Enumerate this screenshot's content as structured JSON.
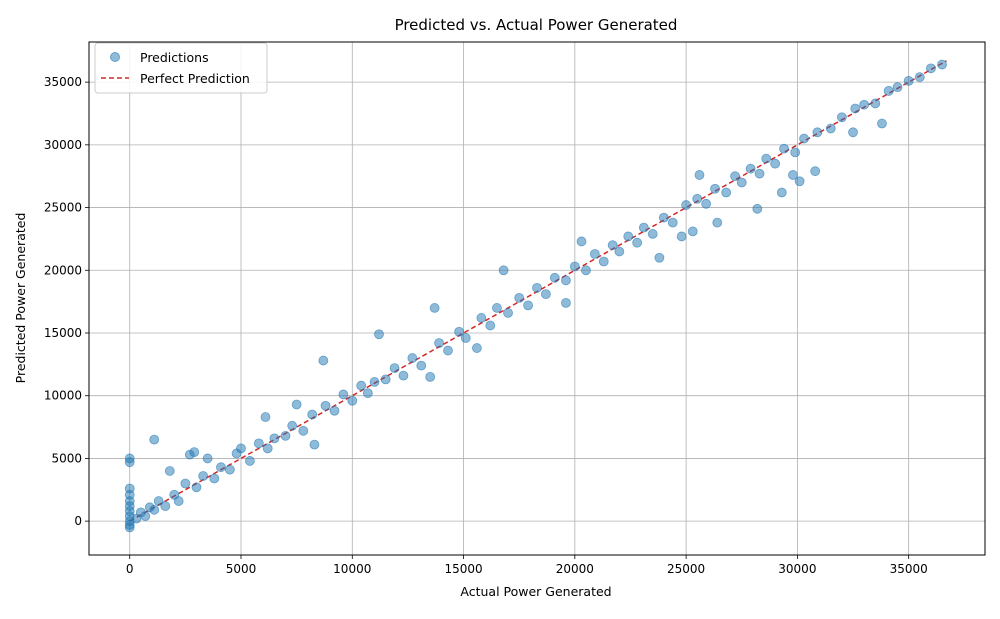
{
  "chart_data": {
    "type": "scatter",
    "title": "Predicted vs. Actual Power Generated",
    "xlabel": "Actual Power Generated",
    "ylabel": "Predicted Power Generated",
    "xlim": [
      -1830,
      38430
    ],
    "ylim": [
      -2700,
      38200
    ],
    "x_ticks": [
      0,
      5000,
      10000,
      15000,
      20000,
      25000,
      30000,
      35000
    ],
    "y_ticks": [
      0,
      5000,
      10000,
      15000,
      20000,
      25000,
      30000,
      35000
    ],
    "grid": true,
    "legend_position": "top-left",
    "colors": {
      "points": "#1f77b4",
      "reference_line": "#d62728"
    },
    "series": [
      {
        "name": "Predictions",
        "kind": "scatter",
        "points": [
          [
            0,
            0
          ],
          [
            0,
            400
          ],
          [
            0,
            800
          ],
          [
            0,
            1200
          ],
          [
            0,
            1600
          ],
          [
            0,
            2100
          ],
          [
            0,
            2600
          ],
          [
            0,
            -300
          ],
          [
            0,
            -500
          ],
          [
            0,
            4700
          ],
          [
            0,
            5000
          ],
          [
            300,
            200
          ],
          [
            500,
            700
          ],
          [
            700,
            400
          ],
          [
            900,
            1100
          ],
          [
            1100,
            900
          ],
          [
            1100,
            6500
          ],
          [
            1300,
            1600
          ],
          [
            1600,
            1200
          ],
          [
            1800,
            4000
          ],
          [
            2000,
            2100
          ],
          [
            2200,
            1600
          ],
          [
            2500,
            3000
          ],
          [
            2700,
            5300
          ],
          [
            2900,
            5500
          ],
          [
            3000,
            2700
          ],
          [
            3300,
            3600
          ],
          [
            3500,
            5000
          ],
          [
            3800,
            3400
          ],
          [
            4100,
            4300
          ],
          [
            4500,
            4100
          ],
          [
            4800,
            5400
          ],
          [
            5000,
            5800
          ],
          [
            5400,
            4800
          ],
          [
            5800,
            6200
          ],
          [
            6100,
            8300
          ],
          [
            6200,
            5800
          ],
          [
            6500,
            6600
          ],
          [
            7000,
            6800
          ],
          [
            7300,
            7600
          ],
          [
            7500,
            9300
          ],
          [
            7800,
            7200
          ],
          [
            8200,
            8500
          ],
          [
            8300,
            6100
          ],
          [
            8700,
            12800
          ],
          [
            8800,
            9200
          ],
          [
            9200,
            8800
          ],
          [
            9600,
            10100
          ],
          [
            10000,
            9600
          ],
          [
            10400,
            10800
          ],
          [
            10700,
            10200
          ],
          [
            11000,
            11100
          ],
          [
            11200,
            14900
          ],
          [
            11500,
            11300
          ],
          [
            11900,
            12200
          ],
          [
            12300,
            11600
          ],
          [
            12700,
            13000
          ],
          [
            13100,
            12400
          ],
          [
            13500,
            11500
          ],
          [
            13700,
            17000
          ],
          [
            13900,
            14200
          ],
          [
            14300,
            13600
          ],
          [
            14800,
            15100
          ],
          [
            15100,
            14600
          ],
          [
            15600,
            13800
          ],
          [
            15800,
            16200
          ],
          [
            16200,
            15600
          ],
          [
            16500,
            17000
          ],
          [
            16800,
            20000
          ],
          [
            17000,
            16600
          ],
          [
            17500,
            17800
          ],
          [
            17900,
            17200
          ],
          [
            18300,
            18600
          ],
          [
            18700,
            18100
          ],
          [
            19100,
            19400
          ],
          [
            19600,
            17400
          ],
          [
            19600,
            19200
          ],
          [
            20000,
            20300
          ],
          [
            20300,
            22300
          ],
          [
            20500,
            20000
          ],
          [
            20900,
            21300
          ],
          [
            21300,
            20700
          ],
          [
            21700,
            22000
          ],
          [
            22000,
            21500
          ],
          [
            22400,
            22700
          ],
          [
            22800,
            22200
          ],
          [
            23100,
            23400
          ],
          [
            23500,
            22900
          ],
          [
            23800,
            21000
          ],
          [
            24000,
            24200
          ],
          [
            24400,
            23800
          ],
          [
            24800,
            22700
          ],
          [
            25000,
            25200
          ],
          [
            25300,
            23100
          ],
          [
            25500,
            25700
          ],
          [
            25600,
            27600
          ],
          [
            25900,
            25300
          ],
          [
            26300,
            26500
          ],
          [
            26400,
            23800
          ],
          [
            26800,
            26200
          ],
          [
            27200,
            27500
          ],
          [
            27500,
            27000
          ],
          [
            27900,
            28100
          ],
          [
            28200,
            24900
          ],
          [
            28300,
            27700
          ],
          [
            28600,
            28900
          ],
          [
            29000,
            28500
          ],
          [
            29300,
            26200
          ],
          [
            29400,
            29700
          ],
          [
            29800,
            27600
          ],
          [
            29900,
            29400
          ],
          [
            30100,
            27100
          ],
          [
            30300,
            30500
          ],
          [
            30800,
            27900
          ],
          [
            30900,
            31000
          ],
          [
            31500,
            31300
          ],
          [
            32000,
            32200
          ],
          [
            32500,
            31000
          ],
          [
            32600,
            32900
          ],
          [
            33000,
            33200
          ],
          [
            33500,
            33300
          ],
          [
            33800,
            31700
          ],
          [
            34100,
            34300
          ],
          [
            34500,
            34600
          ],
          [
            35000,
            35100
          ],
          [
            35500,
            35400
          ],
          [
            36000,
            36100
          ],
          [
            36500,
            36400
          ]
        ]
      },
      {
        "name": "Perfect Prediction",
        "kind": "line",
        "points": [
          [
            0,
            0
          ],
          [
            36700,
            36700
          ]
        ]
      }
    ]
  }
}
